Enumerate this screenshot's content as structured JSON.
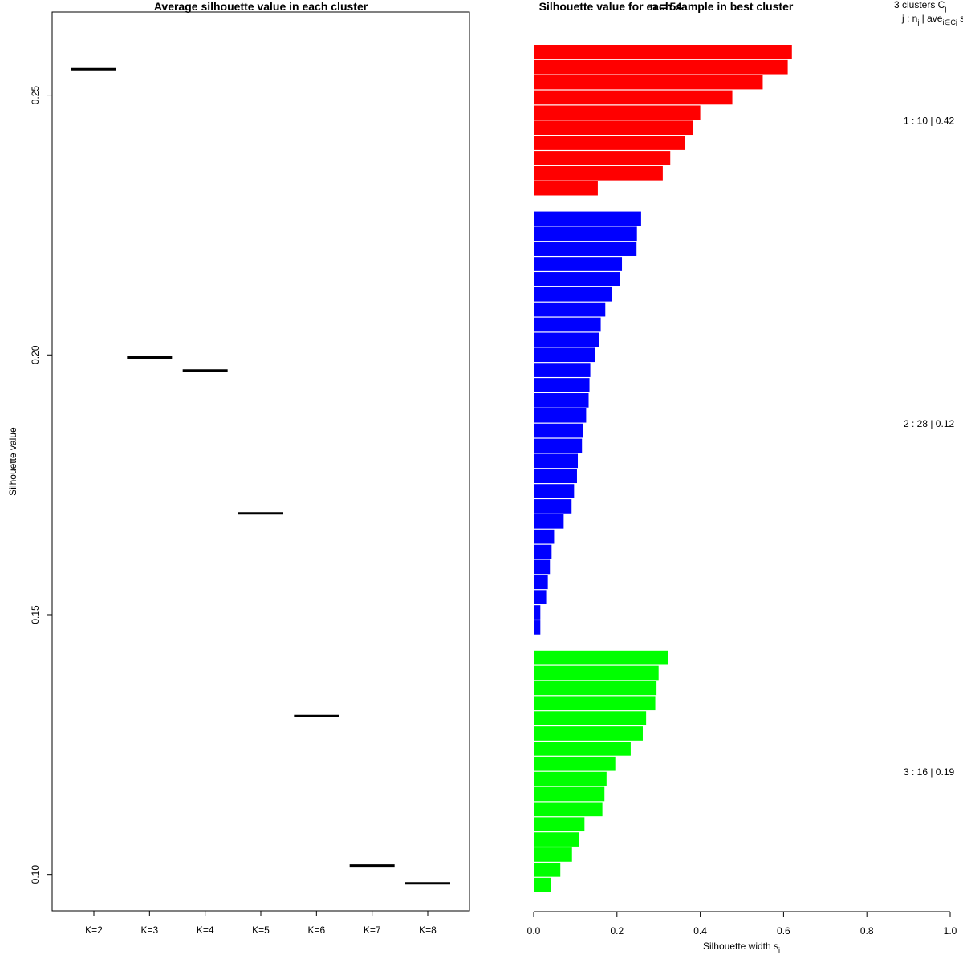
{
  "chart_data": [
    {
      "type": "line",
      "title": "Average silhouette value in each cluster",
      "xlabel": "",
      "ylabel": "Silhouette value",
      "categories": [
        "K=2",
        "K=3",
        "K=4",
        "K=5",
        "K=6",
        "K=7",
        "K=8"
      ],
      "values": [
        0.255,
        0.1995,
        0.197,
        0.1695,
        0.1305,
        0.1017,
        0.0983
      ],
      "ylim": [
        0.093,
        0.266
      ],
      "yticks": [
        "0.10",
        "0.15",
        "0.20",
        "0.25"
      ],
      "ytick_values": [
        0.1,
        0.15,
        0.2,
        0.25
      ]
    },
    {
      "type": "bar",
      "orientation": "horizontal",
      "title": "Silhouette value for each sample in best cluster",
      "subtitle": "n = 54",
      "xlabel": "Silhouette width s",
      "xlabel_sub": "i",
      "xlim": [
        0,
        1
      ],
      "xticks": [
        "0.0",
        "0.2",
        "0.4",
        "0.6",
        "0.8",
        "1.0"
      ],
      "xtick_values": [
        0,
        0.2,
        0.4,
        0.6,
        0.8,
        1.0
      ],
      "legend_header": {
        "line1": "3  clusters  C",
        "line1_sub": "j",
        "line2_pre": "j :  n",
        "line2_sub1": "j",
        "line2_mid": " | ave",
        "line2_sub2": "i∈Cj",
        "line2_post": "  s",
        "line2_sub3": "i"
      },
      "clusters": [
        {
          "label": "1 :  10  |  0.42",
          "color": "#ff0000",
          "values": [
            0.62,
            0.61,
            0.55,
            0.477,
            0.4,
            0.383,
            0.364,
            0.328,
            0.31,
            0.154
          ]
        },
        {
          "label": "2 :  28  |  0.12",
          "color": "#0000ff",
          "values": [
            0.258,
            0.248,
            0.247,
            0.212,
            0.207,
            0.187,
            0.172,
            0.161,
            0.157,
            0.148,
            0.136,
            0.134,
            0.132,
            0.126,
            0.118,
            0.116,
            0.106,
            0.104,
            0.097,
            0.091,
            0.072,
            0.049,
            0.043,
            0.039,
            0.034,
            0.03,
            0.016,
            0.016
          ]
        },
        {
          "label": "3 :  16  |  0.19",
          "color": "#00ff00",
          "values": [
            0.322,
            0.3,
            0.295,
            0.292,
            0.27,
            0.262,
            0.233,
            0.196,
            0.175,
            0.17,
            0.165,
            0.122,
            0.108,
            0.092,
            0.064,
            0.042
          ]
        }
      ]
    }
  ]
}
